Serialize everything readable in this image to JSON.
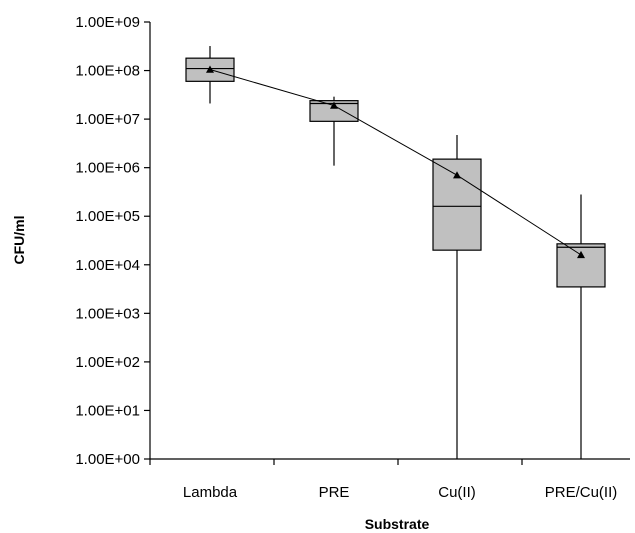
{
  "chart_data": {
    "type": "box",
    "xlabel": "Substrate",
    "ylabel": "CFU/ml",
    "y_scale": "log",
    "ylim": [
      1,
      1000000000
    ],
    "y_ticks": [
      {
        "value": 1,
        "label": "1.00E+00"
      },
      {
        "value": 10,
        "label": "1.00E+01"
      },
      {
        "value": 100,
        "label": "1.00E+02"
      },
      {
        "value": 1000,
        "label": "1.00E+03"
      },
      {
        "value": 10000,
        "label": "1.00E+04"
      },
      {
        "value": 100000,
        "label": "1.00E+05"
      },
      {
        "value": 1000000,
        "label": "1.00E+06"
      },
      {
        "value": 10000000,
        "label": "1.00E+07"
      },
      {
        "value": 100000000,
        "label": "1.00E+08"
      },
      {
        "value": 1000000000,
        "label": "1.00E+09"
      }
    ],
    "categories": [
      "Lambda",
      "PRE",
      "Cu(II)",
      "PRE/Cu(II)"
    ],
    "boxes": [
      {
        "min": 21000000,
        "q1": 60000000,
        "median": 110000000,
        "q3": 180000000,
        "max": 320000000,
        "mean": 105000000
      },
      {
        "min": 1100000,
        "q1": 9000000,
        "median": 21000000,
        "q3": 24000000,
        "max": 29000000,
        "mean": 19000000
      },
      {
        "min": 1,
        "q1": 20000,
        "median": 160000,
        "q3": 1500000,
        "max": 4700000,
        "mean": 700000
      },
      {
        "min": 1,
        "q1": 3500,
        "median": 23000,
        "q3": 27000,
        "max": 280000,
        "mean": 16000
      }
    ],
    "mean_line": true,
    "colors": {
      "box_fill": "#c0c0c0",
      "stroke": "#000000"
    },
    "grid": false,
    "legend": false
  }
}
